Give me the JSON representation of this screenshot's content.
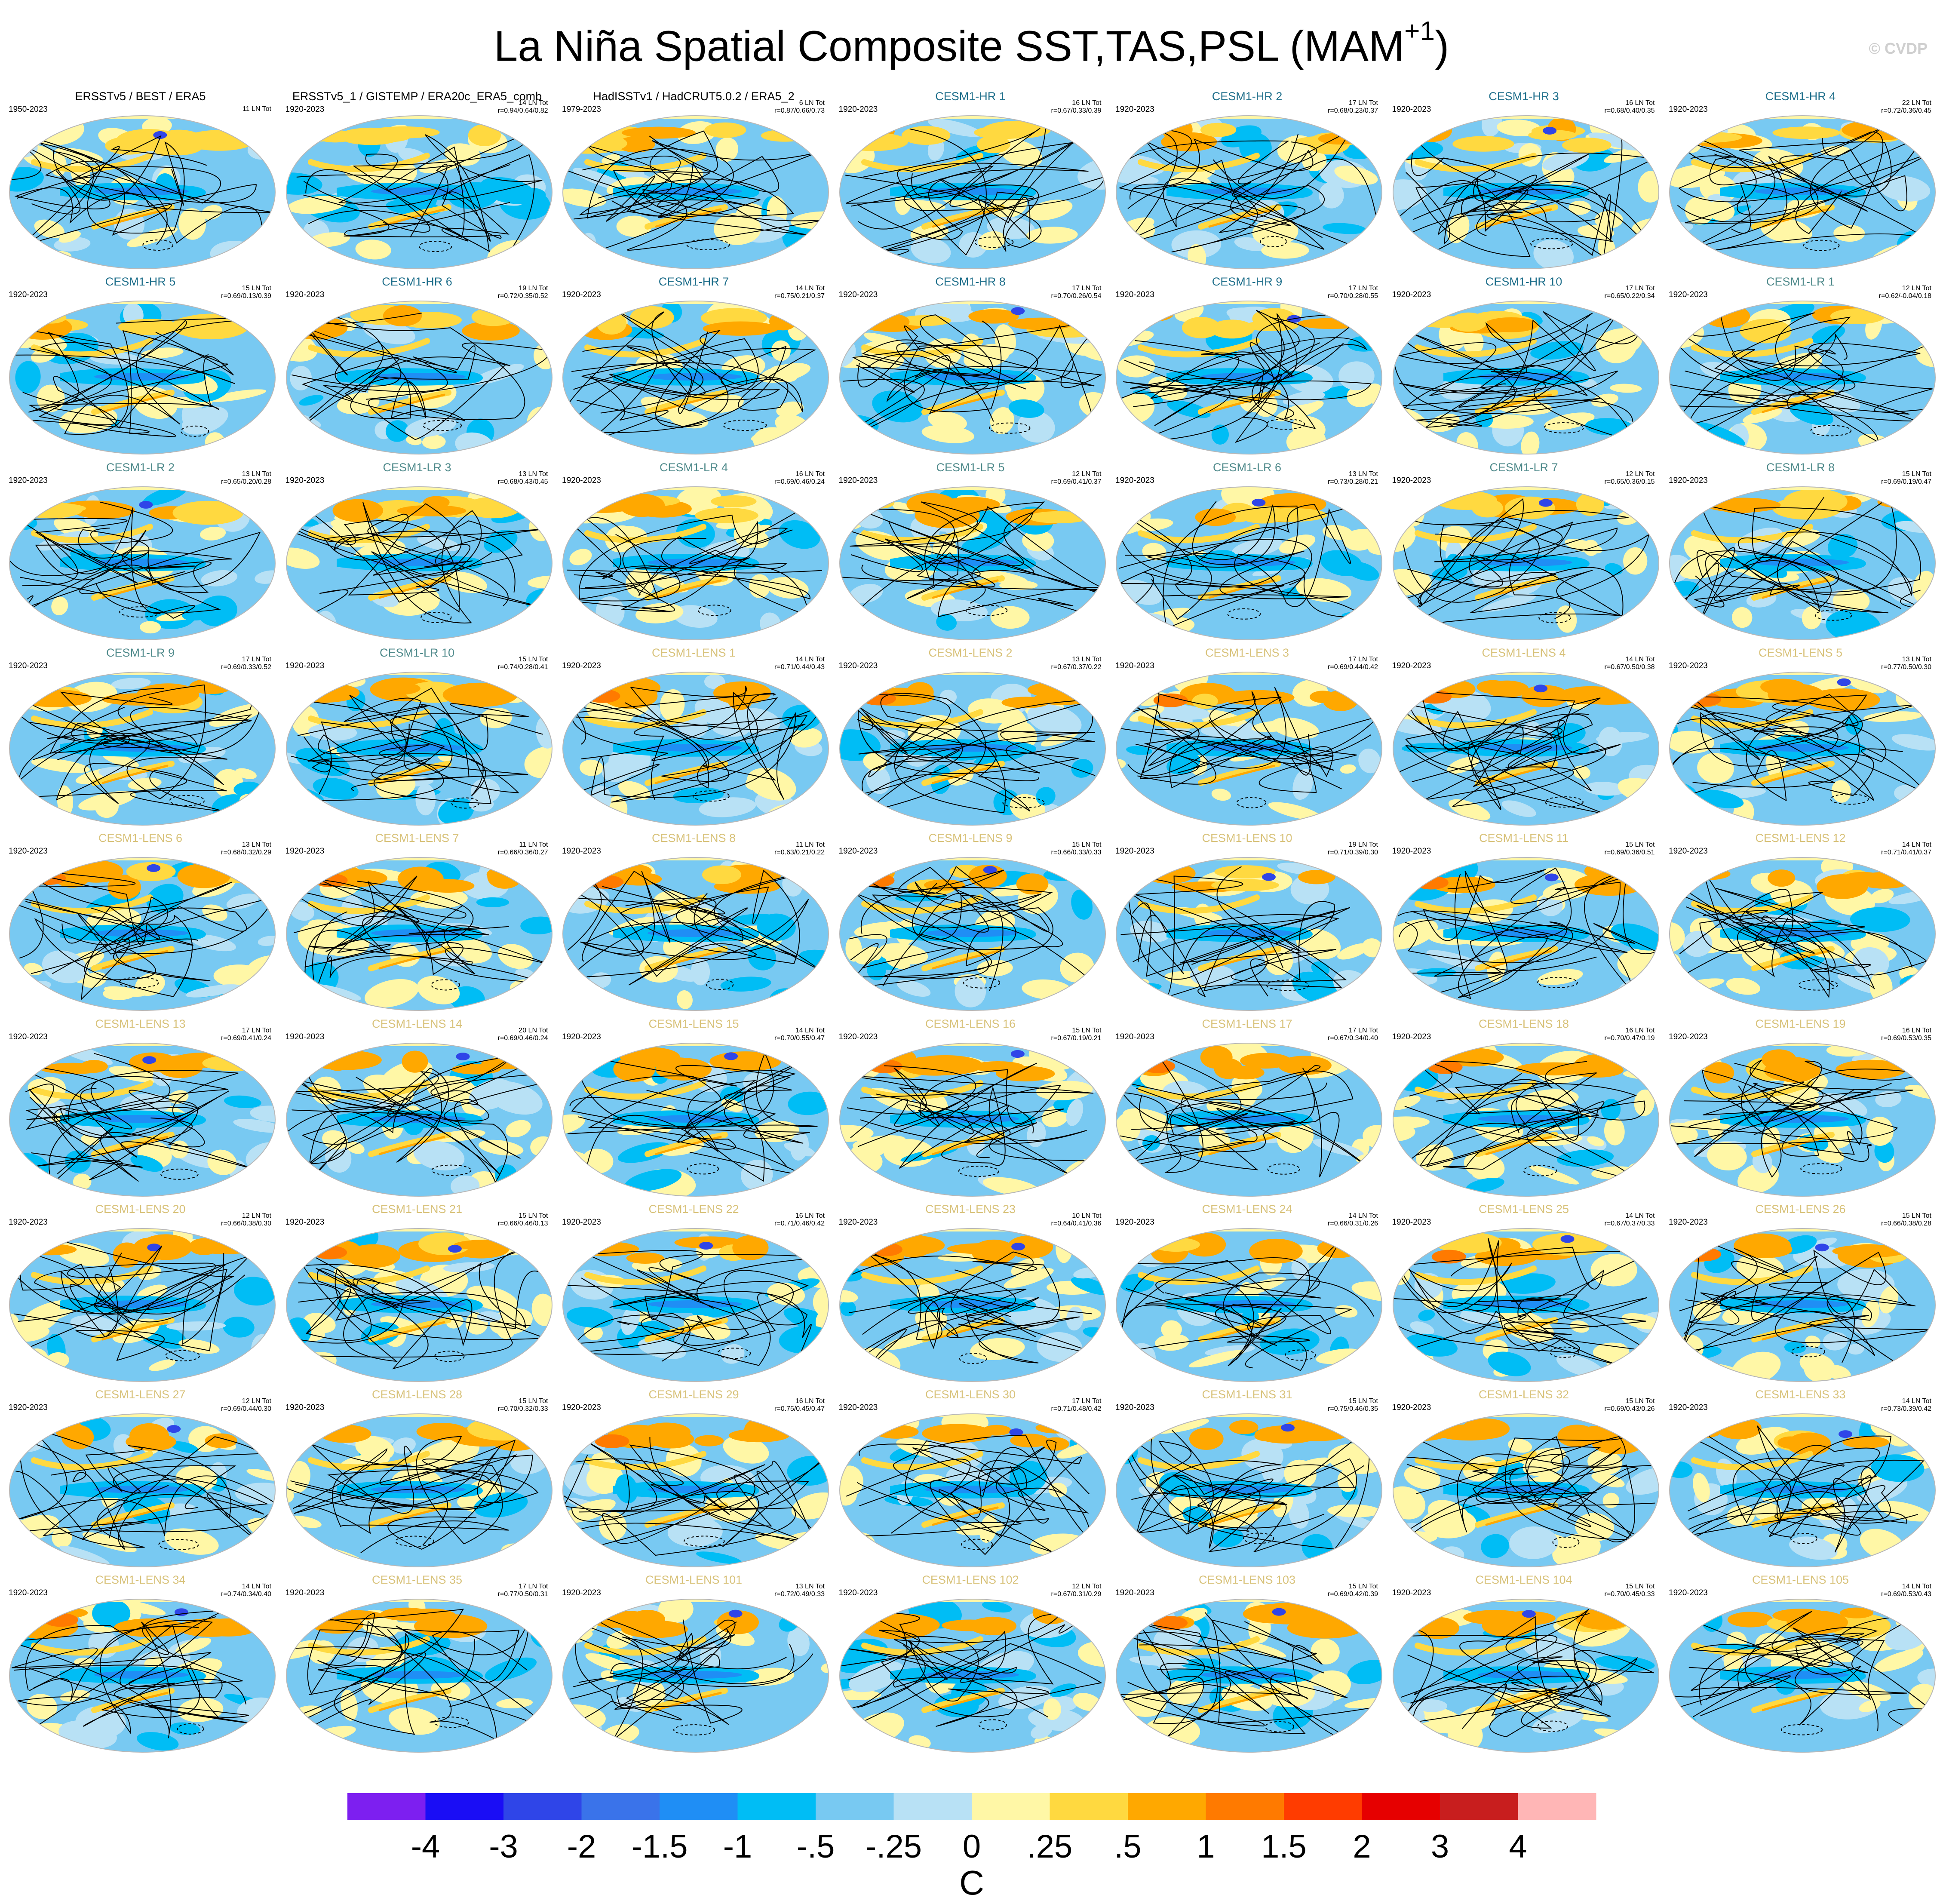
{
  "title": "La Niña Spatial Composite SST,TAS,PSL",
  "title_season": "MAM",
  "title_season_sup": "+1",
  "copyright": "© CVDP",
  "colors": {
    "obs_title": "#000000",
    "hr_title": "#1f6f8b",
    "lr_title": "#4f8a8b",
    "lens_title": "#d8c27a",
    "ocean_dominant": "#8fd0f5",
    "contour": "#000000"
  },
  "chart_data": {
    "type": "heatmap",
    "description_units": "C",
    "layout": "small-multiples grid of global maps (Hammer projection), 7 columns x 9 rows",
    "colorbar": {
      "unit_label": "C",
      "tick_labels": [
        "-4",
        "-3",
        "-2",
        "-1.5",
        "-1",
        "-.5",
        "-.25",
        "0",
        ".25",
        ".5",
        "1",
        "1.5",
        "2",
        "3",
        "4"
      ],
      "colors": [
        "#7d1ff0",
        "#1a0df5",
        "#2f45e8",
        "#3a73ea",
        "#1f8ef5",
        "#00bdf5",
        "#78c9f2",
        "#b8e1f5",
        "#fff7a6",
        "#ffd940",
        "#ffa800",
        "#ff7a00",
        "#ff3c00",
        "#e60000",
        "#c81e1e",
        "#ffb6b6"
      ]
    },
    "panels": [
      {
        "title": "ERSSTv5 / BEST / ERA5",
        "period": "1950-2023",
        "count": "11 LN Tot",
        "corr": "",
        "kind": "obs"
      },
      {
        "title": "ERSSTv5_1 / GISTEMP / ERA20c_ERA5_comb",
        "period": "1920-2023",
        "count": "14 LN Tot",
        "corr": "r=0.94/0.64/0.82",
        "kind": "obs"
      },
      {
        "title": "HadISSTv1 / HadCRUT5.0.2 / ERA5_2",
        "period": "1979-2023",
        "count": "6 LN Tot",
        "corr": "r=0.87/0.66/0.73",
        "kind": "obs"
      },
      {
        "title": "CESM1-HR 1",
        "period": "1920-2023",
        "count": "16 LN Tot",
        "corr": "r=0.67/0.33/0.39",
        "kind": "hr"
      },
      {
        "title": "CESM1-HR 2",
        "period": "1920-2023",
        "count": "17 LN Tot",
        "corr": "r=0.68/0.23/0.37",
        "kind": "hr"
      },
      {
        "title": "CESM1-HR 3",
        "period": "1920-2023",
        "count": "16 LN Tot",
        "corr": "r=0.68/0.40/0.35",
        "kind": "hr"
      },
      {
        "title": "CESM1-HR 4",
        "period": "1920-2023",
        "count": "22 LN Tot",
        "corr": "r=0.72/0.36/0.45",
        "kind": "hr"
      },
      {
        "title": "CESM1-HR 5",
        "period": "1920-2023",
        "count": "15 LN Tot",
        "corr": "r=0.69/0.13/0.39",
        "kind": "hr"
      },
      {
        "title": "CESM1-HR 6",
        "period": "1920-2023",
        "count": "19 LN Tot",
        "corr": "r=0.72/0.35/0.52",
        "kind": "hr"
      },
      {
        "title": "CESM1-HR 7",
        "period": "1920-2023",
        "count": "14 LN Tot",
        "corr": "r=0.75/0.21/0.37",
        "kind": "hr"
      },
      {
        "title": "CESM1-HR 8",
        "period": "1920-2023",
        "count": "17 LN Tot",
        "corr": "r=0.70/0.26/0.54",
        "kind": "hr"
      },
      {
        "title": "CESM1-HR 9",
        "period": "1920-2023",
        "count": "17 LN Tot",
        "corr": "r=0.70/0.28/0.55",
        "kind": "hr"
      },
      {
        "title": "CESM1-HR 10",
        "period": "1920-2023",
        "count": "17 LN Tot",
        "corr": "r=0.65/0.22/0.34",
        "kind": "hr"
      },
      {
        "title": "CESM1-LR 1",
        "period": "1920-2023",
        "count": "12 LN Tot",
        "corr": "r=0.62/-0.04/0.18",
        "kind": "lr"
      },
      {
        "title": "CESM1-LR 2",
        "period": "1920-2023",
        "count": "13 LN Tot",
        "corr": "r=0.65/0.20/0.28",
        "kind": "lr"
      },
      {
        "title": "CESM1-LR 3",
        "period": "1920-2023",
        "count": "13 LN Tot",
        "corr": "r=0.68/0.43/0.45",
        "kind": "lr"
      },
      {
        "title": "CESM1-LR 4",
        "period": "1920-2023",
        "count": "16 LN Tot",
        "corr": "r=0.69/0.46/0.24",
        "kind": "lr"
      },
      {
        "title": "CESM1-LR 5",
        "period": "1920-2023",
        "count": "12 LN Tot",
        "corr": "r=0.69/0.41/0.37",
        "kind": "lr"
      },
      {
        "title": "CESM1-LR 6",
        "period": "1920-2023",
        "count": "13 LN Tot",
        "corr": "r=0.73/0.28/0.21",
        "kind": "lr"
      },
      {
        "title": "CESM1-LR 7",
        "period": "1920-2023",
        "count": "12 LN Tot",
        "corr": "r=0.65/0.36/0.15",
        "kind": "lr"
      },
      {
        "title": "CESM1-LR 8",
        "period": "1920-2023",
        "count": "15 LN Tot",
        "corr": "r=0.69/0.19/0.47",
        "kind": "lr"
      },
      {
        "title": "CESM1-LR 9",
        "period": "1920-2023",
        "count": "17 LN Tot",
        "corr": "r=0.69/0.33/0.52",
        "kind": "lr"
      },
      {
        "title": "CESM1-LR 10",
        "period": "1920-2023",
        "count": "15 LN Tot",
        "corr": "r=0.74/0.28/0.41",
        "kind": "lr"
      },
      {
        "title": "CESM1-LENS 1",
        "period": "1920-2023",
        "count": "14 LN Tot",
        "corr": "r=0.71/0.44/0.43",
        "kind": "lens"
      },
      {
        "title": "CESM1-LENS 2",
        "period": "1920-2023",
        "count": "13 LN Tot",
        "corr": "r=0.67/0.37/0.22",
        "kind": "lens"
      },
      {
        "title": "CESM1-LENS 3",
        "period": "1920-2023",
        "count": "17 LN Tot",
        "corr": "r=0.69/0.44/0.42",
        "kind": "lens"
      },
      {
        "title": "CESM1-LENS 4",
        "period": "1920-2023",
        "count": "14 LN Tot",
        "corr": "r=0.67/0.50/0.38",
        "kind": "lens"
      },
      {
        "title": "CESM1-LENS 5",
        "period": "1920-2023",
        "count": "13 LN Tot",
        "corr": "r=0.77/0.50/0.30",
        "kind": "lens"
      },
      {
        "title": "CESM1-LENS 6",
        "period": "1920-2023",
        "count": "13 LN Tot",
        "corr": "r=0.68/0.32/0.29",
        "kind": "lens"
      },
      {
        "title": "CESM1-LENS 7",
        "period": "1920-2023",
        "count": "11 LN Tot",
        "corr": "r=0.66/0.36/0.27",
        "kind": "lens"
      },
      {
        "title": "CESM1-LENS 8",
        "period": "1920-2023",
        "count": "11 LN Tot",
        "corr": "r=0.63/0.21/0.22",
        "kind": "lens"
      },
      {
        "title": "CESM1-LENS 9",
        "period": "1920-2023",
        "count": "15 LN Tot",
        "corr": "r=0.66/0.33/0.33",
        "kind": "lens"
      },
      {
        "title": "CESM1-LENS 10",
        "period": "1920-2023",
        "count": "19 LN Tot",
        "corr": "r=0.71/0.39/0.30",
        "kind": "lens"
      },
      {
        "title": "CESM1-LENS 11",
        "period": "1920-2023",
        "count": "15 LN Tot",
        "corr": "r=0.69/0.36/0.51",
        "kind": "lens"
      },
      {
        "title": "CESM1-LENS 12",
        "period": "1920-2023",
        "count": "14 LN Tot",
        "corr": "r=0.71/0.41/0.37",
        "kind": "lens"
      },
      {
        "title": "CESM1-LENS 13",
        "period": "1920-2023",
        "count": "17 LN Tot",
        "corr": "r=0.69/0.41/0.24",
        "kind": "lens"
      },
      {
        "title": "CESM1-LENS 14",
        "period": "1920-2023",
        "count": "20 LN Tot",
        "corr": "r=0.69/0.46/0.24",
        "kind": "lens"
      },
      {
        "title": "CESM1-LENS 15",
        "period": "1920-2023",
        "count": "14 LN Tot",
        "corr": "r=0.70/0.55/0.47",
        "kind": "lens"
      },
      {
        "title": "CESM1-LENS 16",
        "period": "1920-2023",
        "count": "15 LN Tot",
        "corr": "r=0.67/0.19/0.21",
        "kind": "lens"
      },
      {
        "title": "CESM1-LENS 17",
        "period": "1920-2023",
        "count": "17 LN Tot",
        "corr": "r=0.67/0.34/0.40",
        "kind": "lens"
      },
      {
        "title": "CESM1-LENS 18",
        "period": "1920-2023",
        "count": "16 LN Tot",
        "corr": "r=0.70/0.47/0.19",
        "kind": "lens"
      },
      {
        "title": "CESM1-LENS 19",
        "period": "1920-2023",
        "count": "16 LN Tot",
        "corr": "r=0.69/0.53/0.35",
        "kind": "lens"
      },
      {
        "title": "CESM1-LENS 20",
        "period": "1920-2023",
        "count": "12 LN Tot",
        "corr": "r=0.66/0.38/0.30",
        "kind": "lens"
      },
      {
        "title": "CESM1-LENS 21",
        "period": "1920-2023",
        "count": "15 LN Tot",
        "corr": "r=0.66/0.46/0.13",
        "kind": "lens"
      },
      {
        "title": "CESM1-LENS 22",
        "period": "1920-2023",
        "count": "16 LN Tot",
        "corr": "r=0.71/0.46/0.42",
        "kind": "lens"
      },
      {
        "title": "CESM1-LENS 23",
        "period": "1920-2023",
        "count": "10 LN Tot",
        "corr": "r=0.64/0.41/0.36",
        "kind": "lens"
      },
      {
        "title": "CESM1-LENS 24",
        "period": "1920-2023",
        "count": "14 LN Tot",
        "corr": "r=0.66/0.31/0.26",
        "kind": "lens"
      },
      {
        "title": "CESM1-LENS 25",
        "period": "1920-2023",
        "count": "14 LN Tot",
        "corr": "r=0.67/0.37/0.33",
        "kind": "lens"
      },
      {
        "title": "CESM1-LENS 26",
        "period": "1920-2023",
        "count": "15 LN Tot",
        "corr": "r=0.66/0.38/0.28",
        "kind": "lens"
      },
      {
        "title": "CESM1-LENS 27",
        "period": "1920-2023",
        "count": "12 LN Tot",
        "corr": "r=0.69/0.44/0.30",
        "kind": "lens"
      },
      {
        "title": "CESM1-LENS 28",
        "period": "1920-2023",
        "count": "15 LN Tot",
        "corr": "r=0.70/0.32/0.33",
        "kind": "lens"
      },
      {
        "title": "CESM1-LENS 29",
        "period": "1920-2023",
        "count": "16 LN Tot",
        "corr": "r=0.75/0.45/0.47",
        "kind": "lens"
      },
      {
        "title": "CESM1-LENS 30",
        "period": "1920-2023",
        "count": "17 LN Tot",
        "corr": "r=0.71/0.48/0.42",
        "kind": "lens"
      },
      {
        "title": "CESM1-LENS 31",
        "period": "1920-2023",
        "count": "15 LN Tot",
        "corr": "r=0.75/0.46/0.35",
        "kind": "lens"
      },
      {
        "title": "CESM1-LENS 32",
        "period": "1920-2023",
        "count": "15 LN Tot",
        "corr": "r=0.69/0.43/0.26",
        "kind": "lens"
      },
      {
        "title": "CESM1-LENS 33",
        "period": "1920-2023",
        "count": "14 LN Tot",
        "corr": "r=0.73/0.39/0.42",
        "kind": "lens"
      },
      {
        "title": "CESM1-LENS 34",
        "period": "1920-2023",
        "count": "14 LN Tot",
        "corr": "r=0.74/0.34/0.40",
        "kind": "lens"
      },
      {
        "title": "CESM1-LENS 35",
        "period": "1920-2023",
        "count": "17 LN Tot",
        "corr": "r=0.77/0.50/0.31",
        "kind": "lens"
      },
      {
        "title": "CESM1-LENS 101",
        "period": "1920-2023",
        "count": "13 LN Tot",
        "corr": "r=0.72/0.49/0.33",
        "kind": "lens"
      },
      {
        "title": "CESM1-LENS 102",
        "period": "1920-2023",
        "count": "12 LN Tot",
        "corr": "r=0.67/0.31/0.29",
        "kind": "lens"
      },
      {
        "title": "CESM1-LENS 103",
        "period": "1920-2023",
        "count": "15 LN Tot",
        "corr": "r=0.69/0.42/0.39",
        "kind": "lens"
      },
      {
        "title": "CESM1-LENS 104",
        "period": "1920-2023",
        "count": "15 LN Tot",
        "corr": "r=0.70/0.45/0.33",
        "kind": "lens"
      },
      {
        "title": "CESM1-LENS 105",
        "period": "1920-2023",
        "count": "14 LN Tot",
        "corr": "r=0.69/0.53/0.43",
        "kind": "lens"
      }
    ]
  }
}
